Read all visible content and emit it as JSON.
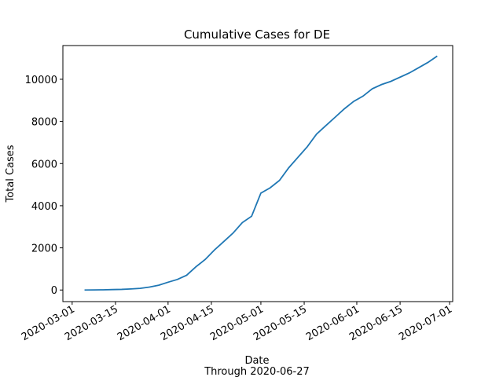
{
  "chart_data": {
    "type": "line",
    "title": "Cumulative Cases for DE",
    "x_label": "Date",
    "x_sublabel": "Through 2020-06-27",
    "y_label": "Total Cases",
    "x": [
      "2020-03-05",
      "2020-03-08",
      "2020-03-11",
      "2020-03-14",
      "2020-03-17",
      "2020-03-20",
      "2020-03-23",
      "2020-03-26",
      "2020-03-29",
      "2020-04-01",
      "2020-04-04",
      "2020-04-07",
      "2020-04-10",
      "2020-04-13",
      "2020-04-16",
      "2020-04-19",
      "2020-04-22",
      "2020-04-25",
      "2020-04-28",
      "2020-05-01",
      "2020-05-04",
      "2020-05-07",
      "2020-05-10",
      "2020-05-13",
      "2020-05-16",
      "2020-05-19",
      "2020-05-22",
      "2020-05-25",
      "2020-05-28",
      "2020-05-31",
      "2020-06-03",
      "2020-06-06",
      "2020-06-09",
      "2020-06-12",
      "2020-06-15",
      "2020-06-18",
      "2020-06-21",
      "2020-06-24",
      "2020-06-27"
    ],
    "series": [
      {
        "name": "Total Cases",
        "color": "#1f77b4",
        "values": [
          0,
          5,
          10,
          20,
          30,
          50,
          80,
          140,
          230,
          370,
          500,
          700,
          1100,
          1450,
          1900,
          2300,
          2700,
          3200,
          3500,
          4600,
          4850,
          5200,
          5800,
          6300,
          6800,
          7400,
          7800,
          8200,
          8600,
          8950,
          9200,
          9550,
          9750,
          9900,
          10100,
          10300,
          10550,
          10800,
          11100
        ]
      }
    ],
    "xlim": [
      "2020-02-27",
      "2020-07-02"
    ],
    "xticks": [
      "2020-03-01",
      "2020-03-15",
      "2020-04-01",
      "2020-04-15",
      "2020-05-01",
      "2020-05-15",
      "2020-06-01",
      "2020-06-15",
      "2020-07-01"
    ],
    "ylim": [
      -550,
      11600
    ],
    "yticks": [
      0,
      2000,
      4000,
      6000,
      8000,
      10000
    ],
    "grid": false
  }
}
